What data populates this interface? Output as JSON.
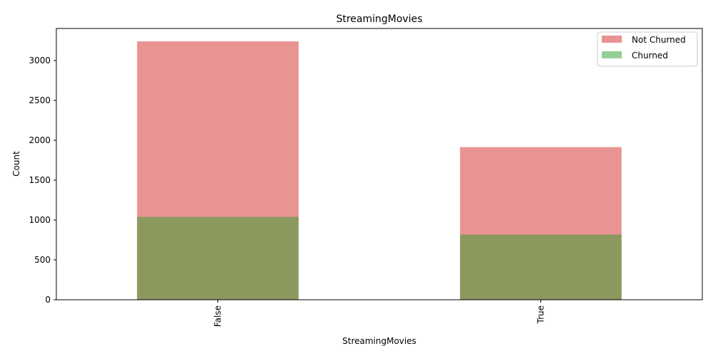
{
  "chart_data": {
    "type": "bar",
    "stacked": false,
    "overlaid": true,
    "title": "StreamingMovies",
    "xlabel": "StreamingMovies",
    "ylabel": "Count",
    "categories": [
      "False",
      "True"
    ],
    "series": [
      {
        "name": "Not Churned",
        "values": [
          3240,
          1914
        ],
        "color": "#d62728"
      },
      {
        "name": "Churned",
        "values": [
          1040,
          818
        ],
        "color": "#2ca02c"
      }
    ],
    "ylim": [
      0,
      3402
    ],
    "yticks": [
      0,
      500,
      1000,
      1500,
      2000,
      2500,
      3000
    ],
    "opacity": 0.5,
    "legend_position": "top-right",
    "grid": false
  }
}
